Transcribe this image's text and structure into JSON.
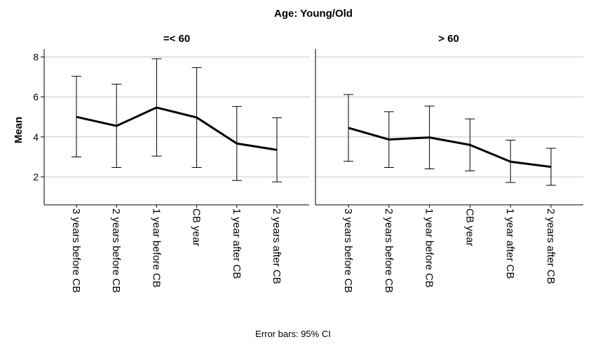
{
  "chart_data": {
    "type": "line",
    "title": "Age: Young/Old",
    "ylabel": "Mean",
    "footnote": "Error bars: 95% CI",
    "ylim": [
      0.6,
      8.4
    ],
    "yticks": [
      2,
      4,
      6,
      8
    ],
    "grid": true,
    "categories": [
      "3 years before CB",
      "2 years before CB",
      "1 year before CB",
      "CB year",
      "1 year after CB",
      "2 years after CB"
    ],
    "panels": [
      {
        "label": "=< 60",
        "values": [
          5.0,
          4.55,
          5.47,
          4.97,
          3.67,
          3.35
        ],
        "ci_low": [
          3.0,
          2.47,
          3.04,
          2.47,
          1.82,
          1.75
        ],
        "ci_high": [
          7.03,
          6.64,
          7.91,
          7.47,
          5.52,
          4.96
        ]
      },
      {
        "label": "> 60",
        "values": [
          4.45,
          3.87,
          3.97,
          3.6,
          2.76,
          2.5
        ],
        "ci_low": [
          2.78,
          2.47,
          2.4,
          2.3,
          1.72,
          1.58
        ],
        "ci_high": [
          6.12,
          5.26,
          5.54,
          4.9,
          3.84,
          3.43
        ]
      }
    ]
  }
}
